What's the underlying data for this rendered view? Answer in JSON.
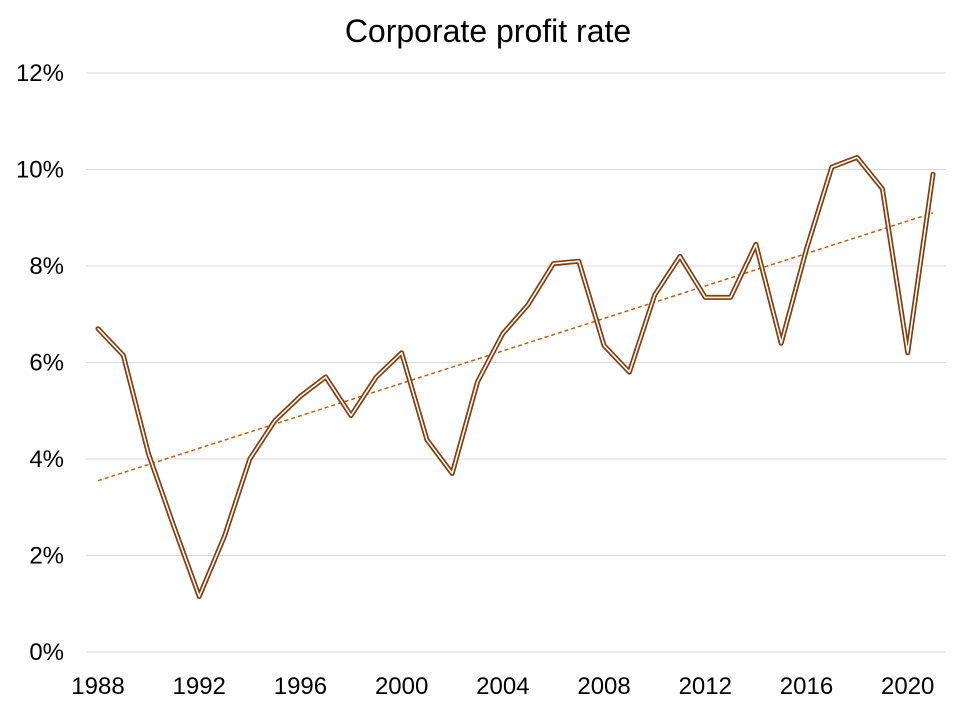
{
  "chart_data": {
    "type": "line",
    "title": "Corporate profit rate",
    "xlabel": "",
    "ylabel": "",
    "xlim": [
      1988,
      2021
    ],
    "ylim": [
      0,
      12
    ],
    "grid": true,
    "legend": "none",
    "x_ticks": [
      {
        "value": 1988,
        "label": "1988"
      },
      {
        "value": 1992,
        "label": "1992"
      },
      {
        "value": 1996,
        "label": "1996"
      },
      {
        "value": 2000,
        "label": "2000"
      },
      {
        "value": 2004,
        "label": "2004"
      },
      {
        "value": 2008,
        "label": "2008"
      },
      {
        "value": 2012,
        "label": "2012"
      },
      {
        "value": 2016,
        "label": "2016"
      },
      {
        "value": 2020,
        "label": "2020"
      }
    ],
    "y_ticks": [
      {
        "value": 0,
        "label": "0%"
      },
      {
        "value": 2,
        "label": "2%"
      },
      {
        "value": 4,
        "label": "4%"
      },
      {
        "value": 6,
        "label": "6%"
      },
      {
        "value": 8,
        "label": "8%"
      },
      {
        "value": 10,
        "label": "10%"
      },
      {
        "value": 12,
        "label": "12%"
      }
    ],
    "series": [
      {
        "name": "Corporate profit rate",
        "color": "#843c0c",
        "style": "double-line",
        "x": [
          1988,
          1989,
          1990,
          1991,
          1992,
          1993,
          1994,
          1995,
          1996,
          1997,
          1998,
          1999,
          2000,
          2001,
          2002,
          2003,
          2004,
          2005,
          2006,
          2007,
          2008,
          2009,
          2010,
          2011,
          2012,
          2013,
          2014,
          2015,
          2016,
          2017,
          2018,
          2019,
          2020,
          2021
        ],
        "values": [
          6.7,
          6.15,
          4.1,
          2.6,
          1.15,
          2.4,
          4.0,
          4.8,
          5.3,
          5.7,
          4.9,
          5.7,
          6.2,
          4.4,
          3.7,
          5.6,
          6.6,
          7.2,
          8.05,
          8.1,
          6.35,
          5.8,
          7.4,
          8.2,
          7.35,
          7.35,
          8.45,
          6.4,
          8.35,
          10.05,
          10.25,
          9.6,
          6.2,
          9.9
        ]
      }
    ],
    "trendline": {
      "type": "linear",
      "color": "#c55a11",
      "style": "dashed",
      "start": [
        1988,
        3.55
      ],
      "end": [
        2021,
        9.1
      ]
    }
  }
}
